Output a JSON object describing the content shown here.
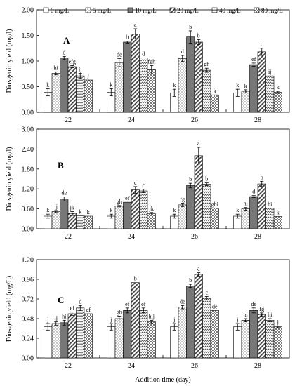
{
  "figure": {
    "xlabel": "Addition time (day)"
  },
  "legend": {
    "items": [
      {
        "label": "0 mg/L",
        "pattern": "white"
      },
      {
        "label": "5 mg/L",
        "pattern": "dots"
      },
      {
        "label": "10 mg/L",
        "pattern": "gray"
      },
      {
        "label": "20 mg/L",
        "pattern": "diag"
      },
      {
        "label": "40 mg/L",
        "pattern": "zigzag"
      },
      {
        "label": "80 mg/L",
        "pattern": "checker"
      }
    ]
  },
  "chart_data": [
    {
      "type": "bar",
      "panel": "A",
      "ylabel": "Diosgenin yield (mg/l)",
      "ylim": [
        0,
        2.0
      ],
      "yticks": [
        "0.00",
        "0.50",
        "1.00",
        "1.50",
        "2.00"
      ],
      "categories": [
        "22",
        "24",
        "26",
        "28"
      ],
      "series": [
        {
          "name": "0 mg/L",
          "values": [
            0.39,
            0.39,
            0.38,
            0.38
          ],
          "errors": [
            0.07,
            0.07,
            0.07,
            0.07
          ],
          "labels": [
            "k",
            "k",
            "k",
            "k"
          ]
        },
        {
          "name": "5 mg/L",
          "values": [
            0.76,
            0.97,
            1.05,
            0.41
          ],
          "errors": [
            0.03,
            0.08,
            0.06,
            0.03
          ],
          "labels": [
            "hi",
            "de",
            "d",
            "k"
          ]
        },
        {
          "name": "10 mg/L",
          "values": [
            1.06,
            1.37,
            1.47,
            0.93
          ],
          "errors": [
            0.03,
            0.02,
            0.12,
            0.03
          ],
          "labels": [
            "d",
            "b",
            "b",
            "ef"
          ]
        },
        {
          "name": "20 mg/L",
          "values": [
            0.89,
            1.53,
            1.37,
            1.18
          ],
          "errors": [
            0.02,
            0.1,
            0.05,
            0.07
          ],
          "labels": [
            "efg",
            "a",
            "b",
            "c"
          ]
        },
        {
          "name": "40 mg/L",
          "values": [
            0.71,
            1.06,
            0.82,
            0.71
          ],
          "errors": [
            0.05,
            0.0,
            0.04,
            0.0
          ],
          "labels": [
            "ij",
            "d",
            "gh",
            "ij"
          ]
        },
        {
          "name": "80 mg/L",
          "values": [
            0.63,
            0.83,
            0.34,
            0.39
          ],
          "errors": [
            0.02,
            0.08,
            0.0,
            0.02
          ],
          "labels": [
            "j",
            "fgh",
            "k",
            "k"
          ]
        }
      ]
    },
    {
      "type": "bar",
      "panel": "B",
      "ylabel": "Diosgenin yield (mg/l)",
      "ylim": [
        0,
        3.0
      ],
      "yticks": [
        "0.00",
        "0.60",
        "1.20",
        "1.80",
        "2.40",
        "3.00"
      ],
      "categories": [
        "22",
        "24",
        "26",
        "28"
      ],
      "series": [
        {
          "name": "0 mg/L",
          "values": [
            0.38,
            0.38,
            0.38,
            0.38
          ],
          "errors": [
            0.06,
            0.06,
            0.06,
            0.06
          ],
          "labels": [
            "k",
            "k",
            "k",
            "k"
          ]
        },
        {
          "name": "5 mg/L",
          "values": [
            0.52,
            0.68,
            0.72,
            0.6
          ],
          "errors": [
            0.03,
            0.02,
            0.05,
            0.04
          ],
          "labels": [
            "ij",
            "gh",
            "fg",
            "hi"
          ]
        },
        {
          "name": "10 mg/L",
          "values": [
            0.9,
            0.8,
            1.3,
            0.97
          ],
          "errors": [
            0.06,
            0.0,
            0.07,
            0.03
          ],
          "labels": [
            "de",
            "ef",
            "b",
            "d"
          ]
        },
        {
          "name": "20 mg/L",
          "values": [
            0.46,
            1.17,
            2.2,
            1.35
          ],
          "errors": [
            0.06,
            0.1,
            0.25,
            0.08
          ],
          "labels": [
            "jk",
            "c",
            "a",
            "b"
          ]
        },
        {
          "name": "40 mg/L",
          "values": [
            0.39,
            1.14,
            1.34,
            0.62
          ],
          "errors": [
            0.0,
            0.05,
            0.04,
            0.0
          ],
          "labels": [
            "k",
            "c",
            "b",
            "hi"
          ]
        },
        {
          "name": "80 mg/L",
          "values": [
            0.38,
            0.45,
            0.62,
            0.37
          ],
          "errors": [
            0.0,
            0.04,
            0.0,
            0.0
          ],
          "labels": [
            "k",
            "jk",
            "ghi",
            "k"
          ]
        }
      ]
    },
    {
      "type": "bar",
      "panel": "C",
      "ylabel": "Diosgenin yield (mg/L)",
      "ylim": [
        0,
        1.2
      ],
      "yticks": [
        "0.00",
        "0.24",
        "0.48",
        "0.72",
        "0.96",
        "1.20"
      ],
      "categories": [
        "22",
        "24",
        "26",
        "28"
      ],
      "series": [
        {
          "name": "0 mg/L",
          "values": [
            0.38,
            0.38,
            0.38,
            0.38
          ],
          "errors": [
            0.04,
            0.04,
            0.04,
            0.04
          ],
          "labels": [
            "j",
            "j",
            "j",
            "j"
          ]
        },
        {
          "name": "5 mg/L",
          "values": [
            0.42,
            0.48,
            0.62,
            0.46
          ],
          "errors": [
            0.02,
            0.03,
            0.02,
            0.02
          ],
          "labels": [
            "ij",
            "gh",
            "de",
            "hi"
          ]
        },
        {
          "name": "10 mg/L",
          "values": [
            0.43,
            0.58,
            0.88,
            0.58
          ],
          "errors": [
            0.03,
            0.03,
            0.02,
            0.03
          ],
          "labels": [
            "hi",
            "ef",
            "b",
            "de"
          ]
        },
        {
          "name": "20 mg/L",
          "values": [
            0.54,
            0.92,
            1.02,
            0.53
          ],
          "errors": [
            0.02,
            0.0,
            0.02,
            0.02
          ],
          "labels": [
            "ef",
            "b",
            "a",
            "fg"
          ]
        },
        {
          "name": "40 mg/L",
          "values": [
            0.61,
            0.58,
            0.73,
            0.46
          ],
          "errors": [
            0.03,
            0.03,
            0.02,
            0.02
          ],
          "labels": [
            "d",
            "ef",
            "c",
            "hi"
          ]
        },
        {
          "name": "80 mg/L",
          "values": [
            0.54,
            0.44,
            0.58,
            0.38
          ],
          "errors": [
            0.0,
            0.02,
            0.0,
            0.01
          ],
          "labels": [
            "ef",
            "hij",
            "de",
            "j"
          ]
        }
      ]
    }
  ]
}
